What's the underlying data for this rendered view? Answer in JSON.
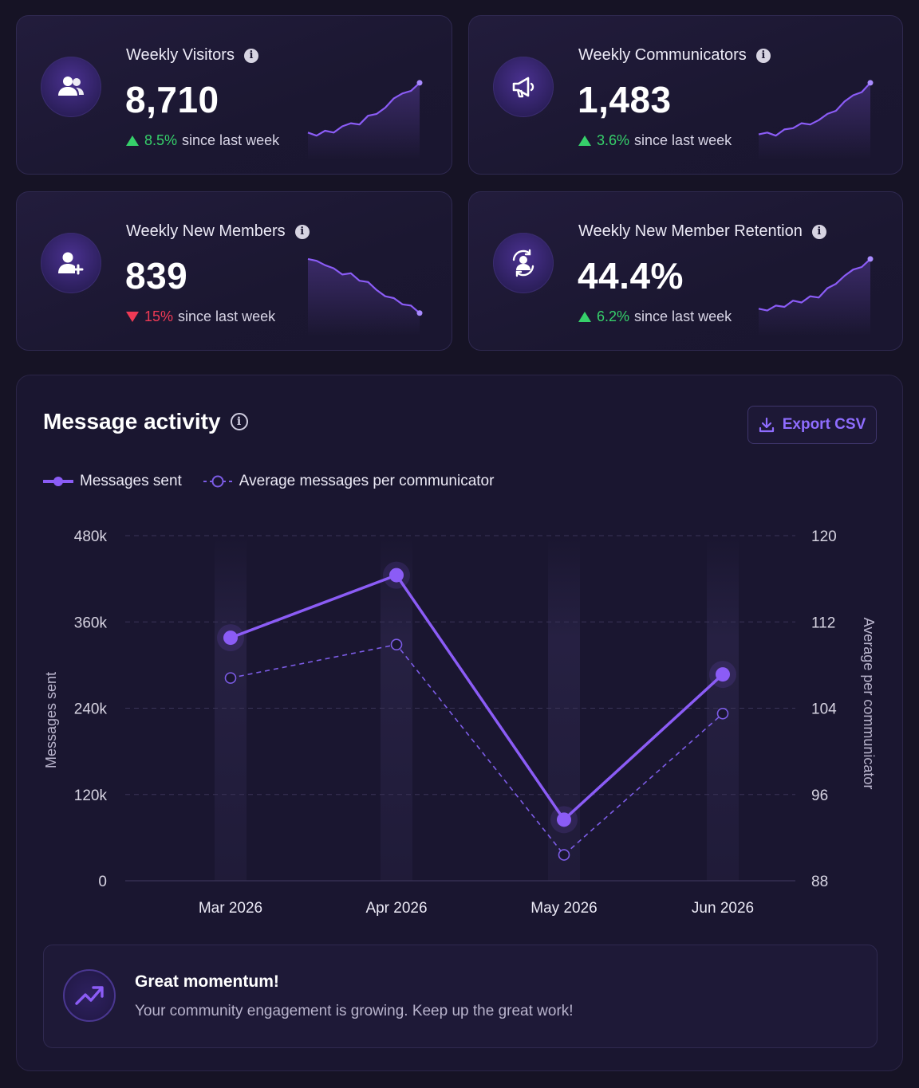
{
  "stats": [
    {
      "title": "Weekly Visitors",
      "value": "8,710",
      "direction": "up",
      "change_pct": "8.5%",
      "change_text": "since last week",
      "icon": "users-icon",
      "spark": [
        0.15,
        0.1,
        0.18,
        0.15,
        0.25,
        0.3,
        0.28,
        0.42,
        0.45,
        0.55,
        0.7,
        0.78,
        0.82,
        0.95
      ]
    },
    {
      "title": "Weekly Communicators",
      "value": "1,483",
      "direction": "up",
      "change_pct": "3.6%",
      "change_text": "since last week",
      "icon": "megaphone-icon",
      "spark": [
        0.12,
        0.15,
        0.1,
        0.2,
        0.22,
        0.3,
        0.28,
        0.35,
        0.45,
        0.5,
        0.65,
        0.75,
        0.8,
        0.95
      ]
    },
    {
      "title": "Weekly New Members",
      "value": "839",
      "direction": "down",
      "change_pct": "15%",
      "change_text": "since last week",
      "icon": "add-user-icon",
      "spark": [
        0.95,
        0.92,
        0.85,
        0.8,
        0.7,
        0.72,
        0.6,
        0.58,
        0.45,
        0.35,
        0.32,
        0.22,
        0.2,
        0.08
      ]
    },
    {
      "title": "Weekly New Member Retention",
      "value": "44.4%",
      "direction": "up",
      "change_pct": "6.2%",
      "change_text": "since last week",
      "icon": "retention-icon",
      "spark": [
        0.15,
        0.12,
        0.2,
        0.18,
        0.28,
        0.25,
        0.35,
        0.33,
        0.48,
        0.55,
        0.68,
        0.78,
        0.82,
        0.95
      ]
    }
  ],
  "activity": {
    "title": "Message activity",
    "export_label": "Export CSV",
    "legend": {
      "primary": "Messages sent",
      "secondary": "Average messages per communicator"
    },
    "colors": {
      "primary": "#8b5cf6",
      "secondary": "#7c5ce6"
    }
  },
  "chart_data": {
    "type": "line",
    "x": [
      "Mar 2026",
      "Apr 2026",
      "May 2026",
      "Jun 2026"
    ],
    "series": [
      {
        "name": "Messages sent",
        "axis": "left",
        "values": [
          338000,
          425000,
          85000,
          287000
        ]
      },
      {
        "name": "Average messages per communicator",
        "axis": "right",
        "values": [
          106.8,
          109.9,
          90.4,
          103.5
        ]
      }
    ],
    "ylabel": "Messages sent",
    "ylabel_right": "Average per communicator",
    "ylim": [
      0,
      480000
    ],
    "ylim_right": [
      88,
      120
    ],
    "yticks": [
      "0",
      "120k",
      "240k",
      "360k",
      "480k"
    ],
    "yticks_right": [
      "88",
      "96",
      "104",
      "112",
      "120"
    ],
    "grid": true,
    "legend_position": "top-left"
  },
  "momentum": {
    "title": "Great momentum!",
    "text": "Your community engagement is growing. Keep up the great work!",
    "icon": "trend-up-icon"
  }
}
